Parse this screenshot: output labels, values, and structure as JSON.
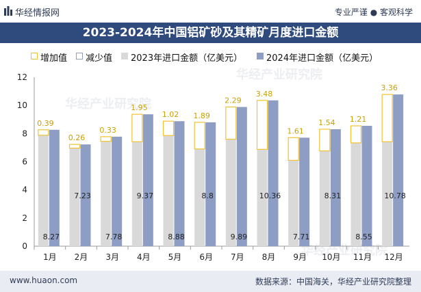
{
  "header": {
    "brand": "华经情报网",
    "slogan": "专业严谨 ● 客观科学"
  },
  "title": "2023-2024年中国铝矿砂及其精矿月度进口金额",
  "legend": {
    "increase": "增加值",
    "decrease": "减少值",
    "s2023": "2023年进口金额（亿美元）",
    "s2024": "2024年进口金额（亿美元）"
  },
  "watermark": "华经产业研究院",
  "footer": {
    "url": "www.huaon.com",
    "source": "数据来源：中国海关，华经产业研究院整理"
  },
  "colors": {
    "s2023": "#d9d9d9",
    "s2024": "#8e9dc4",
    "increase": "#f2c230",
    "decrease": "#8e9dc4",
    "title_bg": "#2f4a7c",
    "footer_bg": "#e9ecf3"
  },
  "chart_data": {
    "type": "bar",
    "categories": [
      "1月",
      "2月",
      "3月",
      "4月",
      "5月",
      "6月",
      "7月",
      "8月",
      "9月",
      "10月",
      "11月",
      "12月"
    ],
    "ylim": [
      0,
      12
    ],
    "yticks": [
      0,
      2,
      4,
      6,
      8,
      10,
      12
    ],
    "series": [
      {
        "name": "2023年进口金额（亿美元）",
        "values": [
          7.88,
          6.97,
          7.45,
          7.42,
          7.86,
          6.91,
          7.6,
          6.88,
          6.1,
          6.77,
          7.34,
          7.42
        ]
      },
      {
        "name": "2024年进口金额（亿美元）",
        "values": [
          8.27,
          7.23,
          7.78,
          9.37,
          8.88,
          8.8,
          9.89,
          10.36,
          7.71,
          8.31,
          8.55,
          10.78
        ]
      }
    ],
    "change": [
      0.39,
      0.26,
      0.33,
      1.95,
      1.02,
      1.89,
      2.29,
      3.48,
      1.61,
      1.54,
      1.21,
      3.36
    ],
    "change_label_positions": "above",
    "legend_position": "top"
  }
}
